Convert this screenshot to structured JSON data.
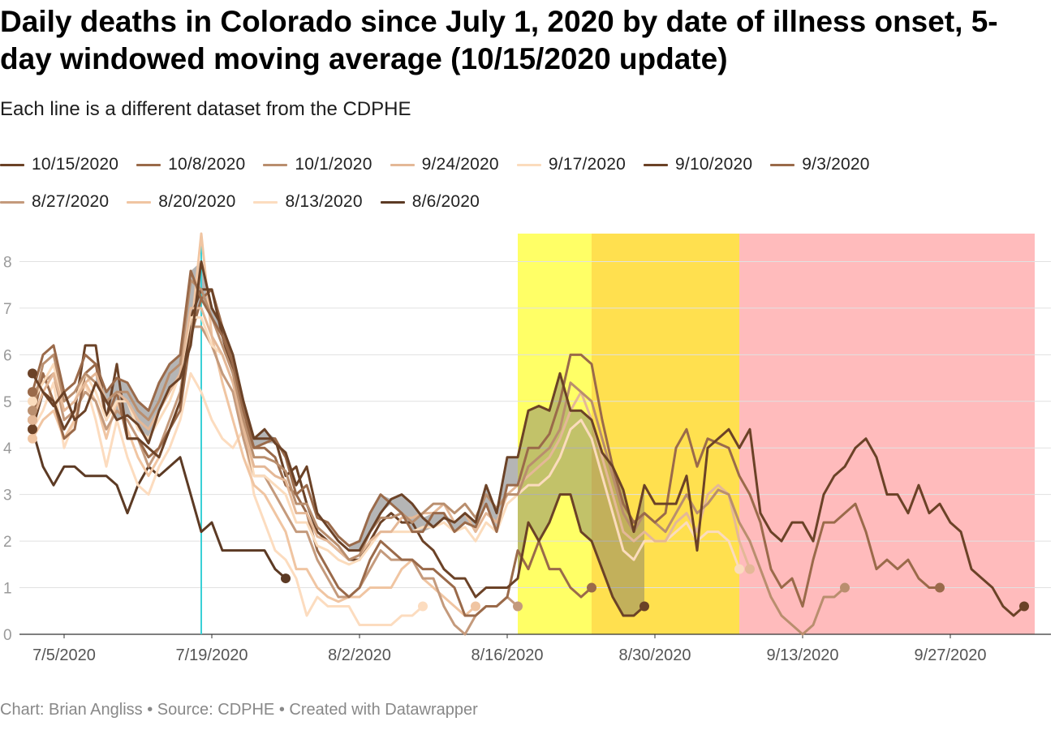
{
  "title": "Daily deaths in Colorado since July 1, 2020 by date of illness onset, 5-day windowed moving average (10/15/2020 update)",
  "subtitle": "Each line is a different dataset from the CDPHE",
  "footer": {
    "chart_by": "Chart: Brian Angliss",
    "sep1": "•",
    "source": "Source: CDPHE",
    "sep2": "•",
    "created": "Created with Datawrapper"
  },
  "chart_data": {
    "type": "line",
    "title": "Daily deaths in Colorado since July 1, 2020 by date of illness onset, 5-day windowed moving average (10/15/2020 update)",
    "x_start": "2020-07-02",
    "xlim": [
      0,
      95
    ],
    "ylim": [
      0,
      8.6
    ],
    "grid": true,
    "yticks": [
      0,
      1,
      2,
      3,
      4,
      5,
      6,
      7,
      8
    ],
    "ytick_labels": [
      "0",
      "1",
      "2",
      "3",
      "4",
      "5",
      "6",
      "7",
      "8"
    ],
    "xticks": [
      3,
      17,
      31,
      45,
      59,
      73,
      87
    ],
    "xtick_labels": [
      "7/5/2020",
      "7/19/2020",
      "8/2/2020",
      "8/16/2020",
      "8/30/2020",
      "9/13/2020",
      "9/27/2020"
    ],
    "vline": {
      "x": 16,
      "color": "#3ad0d6"
    },
    "bands": [
      {
        "x0": 46,
        "x1": 53,
        "color": "#ffff66"
      },
      {
        "x0": 53,
        "x1": 67,
        "color": "#ffe04f"
      },
      {
        "x0": 67,
        "x1": 95,
        "color": "#ffbbbc"
      }
    ],
    "legend": [
      [
        {
          "label": "10/15/2020",
          "color": "#6b4227"
        },
        {
          "label": "10/8/2020",
          "color": "#9a6a4a"
        },
        {
          "label": "10/1/2020",
          "color": "#b98e6e"
        },
        {
          "label": "9/24/2020",
          "color": "#e4b897"
        },
        {
          "label": "9/17/2020",
          "color": "#fbdcbd"
        },
        {
          "label": "9/10/2020",
          "color": "#6b4227"
        },
        {
          "label": "9/3/2020",
          "color": "#9a6a4a"
        }
      ],
      [
        {
          "label": "8/27/2020",
          "color": "#c49a7c"
        },
        {
          "label": "8/20/2020",
          "color": "#f0c5a2"
        },
        {
          "label": "8/13/2020",
          "color": "#fcdcbf"
        },
        {
          "label": "8/6/2020",
          "color": "#5c3a24"
        }
      ]
    ],
    "series": [
      {
        "name": "10/15/2020",
        "color": "#6b4227",
        "values": [
          5.6,
          5.2,
          4.9,
          5.2,
          4.6,
          4.8,
          5.4,
          5.0,
          4.6,
          4.7,
          4.5,
          4.1,
          4.8,
          5.3,
          5.5,
          6.2,
          8.0,
          7.0,
          6.6,
          6.0,
          5.0,
          4.2,
          4.4,
          4.1,
          3.9,
          3.2,
          3.6,
          2.6,
          2.3,
          2.0,
          1.8,
          1.8,
          2.2,
          2.6,
          2.9,
          3.0,
          2.8,
          2.5,
          2.3,
          2.5,
          2.4,
          2.6,
          2.4,
          3.2,
          2.6,
          3.8,
          3.8,
          4.8,
          4.9,
          4.8,
          5.6,
          4.8,
          4.8,
          4.6,
          3.9,
          3.6,
          3.1,
          2.2,
          3.2,
          2.8,
          2.8,
          2.8,
          3.4,
          1.8,
          4.0,
          4.2,
          4.4,
          4.0,
          4.4,
          2.6,
          2.2,
          2.0,
          2.4,
          2.4,
          2.0,
          3.0,
          3.4,
          3.6,
          4.0,
          4.2,
          3.8,
          3.0,
          3.0,
          2.6,
          3.2,
          2.6,
          2.8,
          2.4,
          2.2,
          1.4,
          1.2,
          1.0,
          0.6,
          0.4,
          0.6
        ]
      },
      {
        "name": "10/8/2020",
        "color": "#9a6a4a",
        "values": [
          5.2,
          6.0,
          6.2,
          5.2,
          5.4,
          6.0,
          5.8,
          5.2,
          5.5,
          5.4,
          5.0,
          4.8,
          5.4,
          5.8,
          6.0,
          7.8,
          7.2,
          6.8,
          6.4,
          5.8,
          4.8,
          4.0,
          4.1,
          4.2,
          3.8,
          3.0,
          3.2,
          2.5,
          2.4,
          2.1,
          1.9,
          2.0,
          2.6,
          3.0,
          2.8,
          2.6,
          2.2,
          2.2,
          2.6,
          2.6,
          2.2,
          2.4,
          2.3,
          2.8,
          2.2,
          3.2,
          3.2,
          4.0,
          4.0,
          4.3,
          5.0,
          6.0,
          6.0,
          5.8,
          4.6,
          3.6,
          2.8,
          2.4,
          2.6,
          2.4,
          2.6,
          4.0,
          4.4,
          3.6,
          4.2,
          4.1,
          4.0,
          3.4,
          3.0,
          2.4,
          1.4,
          1.0,
          1.2,
          0.6,
          1.6,
          2.4,
          2.4,
          2.6,
          2.8,
          2.2,
          1.4,
          1.6,
          1.4,
          1.6,
          1.2,
          1.0,
          1.0
        ]
      },
      {
        "name": "10/1/2020",
        "color": "#b98e6e",
        "values": [
          4.8,
          5.8,
          6.0,
          5.0,
          5.2,
          5.6,
          5.4,
          5.0,
          5.2,
          5.2,
          4.8,
          4.6,
          5.0,
          5.6,
          5.8,
          7.6,
          7.4,
          6.8,
          6.2,
          5.6,
          4.6,
          3.8,
          3.8,
          3.7,
          3.5,
          2.8,
          2.8,
          2.3,
          2.1,
          1.9,
          1.6,
          1.7,
          2.2,
          2.5,
          2.5,
          2.6,
          2.4,
          2.6,
          2.8,
          2.8,
          2.6,
          2.8,
          2.5,
          3.0,
          2.7,
          3.0,
          3.0,
          3.6,
          3.8,
          4.0,
          4.4,
          5.4,
          5.2,
          5.0,
          4.2,
          3.4,
          2.6,
          2.2,
          2.6,
          2.4,
          2.2,
          2.6,
          3.0,
          2.6,
          2.8,
          3.1,
          3.0,
          2.4,
          2.0,
          1.4,
          0.8,
          0.4,
          0.2,
          0.0,
          0.2,
          0.8,
          0.8,
          1.0
        ]
      },
      {
        "name": "9/24/2020",
        "color": "#e4b897",
        "values": [
          4.6,
          5.2,
          5.6,
          4.8,
          5.0,
          5.4,
          5.6,
          5.0,
          5.2,
          5.0,
          4.6,
          4.4,
          4.8,
          5.2,
          5.6,
          7.0,
          7.0,
          6.4,
          6.0,
          5.4,
          4.4,
          3.6,
          3.6,
          3.4,
          3.3,
          2.6,
          2.6,
          2.1,
          2.0,
          1.8,
          1.6,
          1.7,
          2.0,
          2.2,
          2.2,
          2.5,
          2.5,
          2.6,
          2.6,
          2.8,
          2.4,
          2.6,
          2.2,
          2.6,
          2.4,
          3.0,
          3.2,
          3.4,
          3.6,
          3.8,
          4.2,
          4.8,
          5.2,
          4.6,
          3.8,
          3.0,
          2.2,
          2.0,
          2.2,
          2.0,
          2.0,
          2.4,
          2.6,
          2.2,
          3.0,
          3.2,
          3.0,
          2.0,
          1.4
        ]
      },
      {
        "name": "9/17/2020",
        "color": "#fbdcbd",
        "values": [
          5.0,
          5.4,
          5.8,
          4.8,
          5.0,
          5.6,
          5.2,
          4.6,
          5.0,
          5.0,
          4.4,
          4.2,
          4.6,
          5.0,
          5.6,
          6.8,
          6.8,
          6.2,
          6.0,
          5.4,
          4.6,
          3.4,
          3.4,
          3.2,
          3.0,
          2.4,
          2.4,
          1.9,
          1.8,
          1.6,
          1.5,
          1.6,
          1.9,
          2.2,
          2.2,
          2.2,
          2.2,
          2.3,
          2.3,
          2.4,
          2.2,
          2.3,
          2.0,
          2.4,
          2.2,
          2.8,
          3.0,
          3.2,
          3.2,
          3.4,
          3.8,
          4.4,
          4.6,
          4.2,
          3.4,
          2.6,
          1.8,
          1.6,
          2.0,
          2.0,
          2.0,
          2.2,
          2.4,
          2.0,
          2.2,
          2.2,
          2.0,
          1.4
        ]
      },
      {
        "name": "9/10/2020",
        "color": "#6b4227",
        "values": [
          4.4,
          5.2,
          5.0,
          4.4,
          4.8,
          6.2,
          6.2,
          4.6,
          5.8,
          4.2,
          4.2,
          4.0,
          3.8,
          4.4,
          5.0,
          6.8,
          7.4,
          7.4,
          6.4,
          5.6,
          4.8,
          4.2,
          4.2,
          4.2,
          3.4,
          3.6,
          2.8,
          2.2,
          2.0,
          1.8,
          1.6,
          1.6,
          2.0,
          2.4,
          2.6,
          2.4,
          2.4,
          2.0,
          1.8,
          1.4,
          1.2,
          1.2,
          0.8,
          1.0,
          1.0,
          1.0,
          1.2,
          2.4,
          2.0,
          2.4,
          3.0,
          3.0,
          2.2,
          2.0,
          1.4,
          0.8,
          0.4,
          0.4,
          0.6
        ]
      },
      {
        "name": "9/3/2020",
        "color": "#9a6a4a",
        "values": [
          4.6,
          5.6,
          5.0,
          4.2,
          4.4,
          5.6,
          5.8,
          4.6,
          5.2,
          4.2,
          4.2,
          3.8,
          4.0,
          4.4,
          4.8,
          6.4,
          7.2,
          7.4,
          6.6,
          5.8,
          4.6,
          4.0,
          4.0,
          3.8,
          3.2,
          3.0,
          2.6,
          1.8,
          1.4,
          1.0,
          0.8,
          1.0,
          1.6,
          2.0,
          1.8,
          1.6,
          1.6,
          1.4,
          1.4,
          1.2,
          1.0,
          0.4,
          0.4,
          0.6,
          0.6,
          0.8,
          1.8,
          1.4,
          2.0,
          1.4,
          1.4,
          1.0,
          0.8,
          1.0
        ]
      },
      {
        "name": "8/27/2020",
        "color": "#c49a7c",
        "values": [
          5.2,
          5.4,
          5.6,
          4.6,
          4.8,
          5.2,
          5.0,
          4.4,
          4.8,
          4.6,
          4.2,
          3.6,
          4.0,
          4.6,
          5.2,
          6.6,
          6.6,
          6.2,
          5.6,
          5.2,
          4.2,
          3.4,
          3.4,
          3.0,
          2.6,
          2.2,
          2.2,
          1.6,
          1.2,
          0.8,
          0.8,
          1.0,
          1.4,
          1.8,
          1.6,
          1.6,
          1.6,
          1.2,
          1.2,
          0.6,
          0.2,
          0.0,
          0.4,
          0.6,
          0.6,
          0.8,
          0.6
        ]
      },
      {
        "name": "8/20/2020",
        "color": "#f0c5a2",
        "values": [
          4.2,
          4.6,
          4.8,
          4.2,
          4.6,
          5.4,
          5.0,
          4.2,
          5.0,
          4.4,
          3.8,
          3.4,
          3.8,
          4.4,
          5.0,
          6.4,
          8.6,
          6.4,
          5.4,
          4.6,
          3.8,
          3.2,
          3.0,
          2.6,
          2.2,
          1.4,
          1.4,
          1.0,
          0.8,
          0.7,
          0.8,
          0.8,
          1.0,
          1.0,
          1.0,
          1.4,
          1.6,
          1.2,
          1.0,
          0.8,
          0.6,
          0.4,
          0.6
        ]
      },
      {
        "name": "8/13/2020",
        "color": "#fcdcbf",
        "values": [
          4.4,
          4.8,
          5.4,
          4.0,
          4.6,
          5.4,
          4.6,
          3.6,
          4.6,
          3.8,
          3.2,
          3.0,
          3.6,
          4.0,
          4.6,
          5.6,
          5.2,
          4.6,
          4.2,
          4.0,
          4.4,
          3.0,
          2.4,
          1.8,
          1.6,
          1.2,
          0.4,
          0.8,
          0.6,
          0.6,
          0.6,
          0.2,
          0.2,
          0.2,
          0.2,
          0.4,
          0.4,
          0.6
        ]
      },
      {
        "name": "8/6/2020",
        "color": "#5c3a24",
        "values": [
          4.4,
          3.6,
          3.2,
          3.6,
          3.6,
          3.4,
          3.4,
          3.4,
          3.2,
          2.6,
          3.2,
          3.6,
          3.4,
          3.6,
          3.8,
          3.0,
          2.2,
          2.4,
          1.8,
          1.8,
          1.8,
          1.8,
          1.8,
          1.4,
          1.2
        ]
      }
    ],
    "shading": [
      {
        "x0": 6,
        "x1": 24,
        "y_from_series": [
          0,
          1
        ],
        "color": "rgba(120,120,120,0.55)"
      },
      {
        "x0": 30,
        "x1": 46,
        "y_from_series": [
          0,
          1
        ],
        "color": "rgba(120,120,120,0.55)"
      },
      {
        "x0": 46,
        "x1": 67,
        "y_from_series": [
          0,
          5
        ],
        "color": "rgba(110,110,110,0.42)"
      },
      {
        "x0": 67,
        "x1": 87,
        "y_from_series": [
          0,
          6
        ],
        "color": "rgba(110,110,110,0.35)"
      }
    ]
  }
}
